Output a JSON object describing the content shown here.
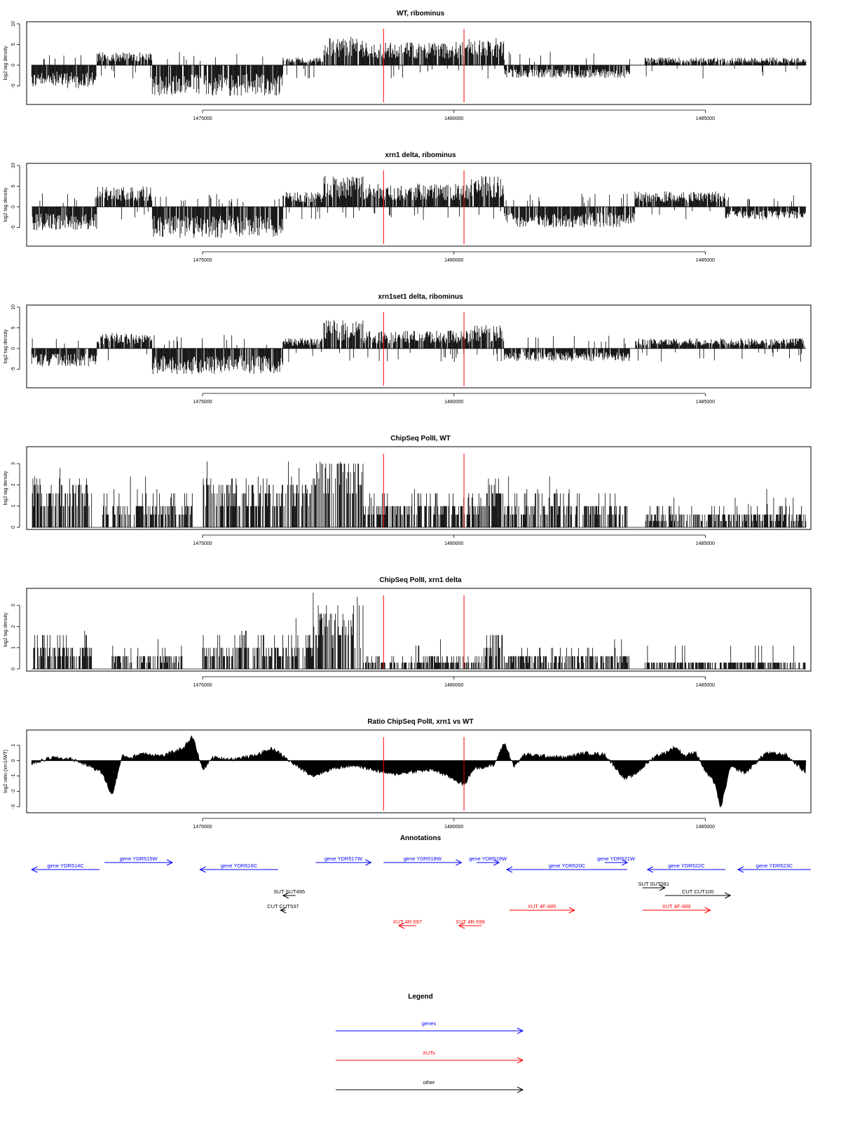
{
  "colors": {
    "marker": "#ff0000",
    "gene": "#0000ff",
    "xut": "#ff0000",
    "other": "#000000",
    "data": "#000000",
    "frame": "#000000"
  },
  "xaxis": {
    "range": [
      1471500,
      1487100
    ],
    "ticks": [
      1475000,
      1480000,
      1485000
    ],
    "tick_labels": [
      "1475000",
      "1480000",
      "1485000"
    ]
  },
  "markers": [
    1478600,
    1480200
  ],
  "panels": [
    {
      "title": "WT, ribominus",
      "ylabel": "log2 tag density",
      "ylim": [
        -9.5,
        10.5
      ],
      "yticks": [
        -5,
        0,
        5,
        10
      ],
      "ytick_labels": [
        "-5",
        "0",
        "5",
        "10"
      ]
    },
    {
      "title": "xrn1 delta, ribominus",
      "ylabel": "log2 tag density",
      "ylim": [
        -9.5,
        10.5
      ],
      "yticks": [
        -5,
        0,
        5,
        10
      ],
      "ytick_labels": [
        "-5",
        "0",
        "5",
        "10"
      ]
    },
    {
      "title": "xrn1set1 delta, ribominus",
      "ylabel": "log2 tag density",
      "ylim": [
        -9.5,
        10.5
      ],
      "yticks": [
        -5,
        0,
        5,
        10
      ],
      "ytick_labels": [
        "-5",
        "0",
        "5",
        "10"
      ]
    },
    {
      "title": "ChipSeq PolII, WT",
      "ylabel": "log2 tag density",
      "ylim": [
        -0.1,
        3.8
      ],
      "yticks": [
        0,
        1,
        2,
        3
      ],
      "ytick_labels": [
        "0",
        "1",
        "2",
        "3"
      ]
    },
    {
      "title": "ChipSeq PolII, xrn1 delta",
      "ylabel": "log2 tag density",
      "ylim": [
        -0.1,
        3.8
      ],
      "yticks": [
        0,
        1,
        2,
        3
      ],
      "ytick_labels": [
        "0",
        "1",
        "2",
        "3"
      ]
    },
    {
      "title": "Ratio ChipSeq PolII, xrn1 vs WT",
      "ylabel": "log2 ratio (xrn1/WT)",
      "ylim": [
        -3.4,
        2.0
      ],
      "yticks": [
        -3,
        -2,
        -1,
        0,
        1
      ],
      "ytick_labels": [
        "-3",
        "-2",
        "-1",
        "0",
        "1"
      ]
    }
  ],
  "chart_data": [
    {
      "type": "bar",
      "title": "WT, ribominus",
      "xlabel": "",
      "ylabel": "log2 tag density",
      "ylim": [
        -9.5,
        10.5
      ],
      "grid": false,
      "segments": [
        {
          "start": 1471600,
          "end": 1472900,
          "strand": "minus",
          "level": 4.5
        },
        {
          "start": 1472900,
          "end": 1474000,
          "strand": "plus",
          "level": 2.5
        },
        {
          "start": 1474000,
          "end": 1476600,
          "strand": "minus",
          "level": 6
        },
        {
          "start": 1476600,
          "end": 1477400,
          "strand": "plus",
          "level": 1.5
        },
        {
          "start": 1477400,
          "end": 1478200,
          "strand": "plus",
          "level": 5.5
        },
        {
          "start": 1478200,
          "end": 1480300,
          "strand": "plus",
          "level": 4.5
        },
        {
          "start": 1480300,
          "end": 1481000,
          "strand": "plus",
          "level": 5.5
        },
        {
          "start": 1481000,
          "end": 1483500,
          "strand": "minus",
          "level": 2.5
        },
        {
          "start": 1483800,
          "end": 1487000,
          "strand": "plus",
          "level": 1.5
        }
      ]
    },
    {
      "type": "bar",
      "title": "xrn1 delta, ribominus",
      "xlabel": "",
      "ylabel": "log2 tag density",
      "ylim": [
        -9.5,
        10.5
      ],
      "grid": false,
      "segments": [
        {
          "start": 1471600,
          "end": 1472900,
          "strand": "minus",
          "level": 4.5
        },
        {
          "start": 1472900,
          "end": 1474000,
          "strand": "plus",
          "level": 4
        },
        {
          "start": 1474000,
          "end": 1476600,
          "strand": "minus",
          "level": 6
        },
        {
          "start": 1476600,
          "end": 1477400,
          "strand": "plus",
          "level": 3
        },
        {
          "start": 1477400,
          "end": 1478200,
          "strand": "plus",
          "level": 6
        },
        {
          "start": 1478200,
          "end": 1480300,
          "strand": "plus",
          "level": 4.5
        },
        {
          "start": 1480300,
          "end": 1481000,
          "strand": "plus",
          "level": 6
        },
        {
          "start": 1481000,
          "end": 1483600,
          "strand": "minus",
          "level": 4
        },
        {
          "start": 1483600,
          "end": 1485400,
          "strand": "plus",
          "level": 3
        },
        {
          "start": 1485400,
          "end": 1487000,
          "strand": "minus",
          "level": 2.5
        }
      ]
    },
    {
      "type": "bar",
      "title": "xrn1set1 delta, ribominus",
      "xlabel": "",
      "ylabel": "log2 tag density",
      "ylim": [
        -9.5,
        10.5
      ],
      "grid": false,
      "segments": [
        {
          "start": 1471600,
          "end": 1472900,
          "strand": "minus",
          "level": 3.5
        },
        {
          "start": 1472900,
          "end": 1474000,
          "strand": "plus",
          "level": 3
        },
        {
          "start": 1474000,
          "end": 1476600,
          "strand": "minus",
          "level": 5
        },
        {
          "start": 1476600,
          "end": 1477400,
          "strand": "plus",
          "level": 2
        },
        {
          "start": 1477400,
          "end": 1478200,
          "strand": "plus",
          "level": 5.5
        },
        {
          "start": 1478200,
          "end": 1480300,
          "strand": "plus",
          "level": 3.5
        },
        {
          "start": 1480300,
          "end": 1481000,
          "strand": "plus",
          "level": 4.5
        },
        {
          "start": 1481000,
          "end": 1483500,
          "strand": "minus",
          "level": 2.5
        },
        {
          "start": 1483600,
          "end": 1487000,
          "strand": "plus",
          "level": 2
        }
      ]
    },
    {
      "type": "bar",
      "title": "ChipSeq PolII, WT",
      "xlabel": "",
      "ylabel": "log2 tag density",
      "ylim": [
        -0.1,
        3.8
      ],
      "grid": false,
      "segments": [
        {
          "start": 1471600,
          "end": 1472800,
          "level": 1.6
        },
        {
          "start": 1473000,
          "end": 1474800,
          "level": 1.0
        },
        {
          "start": 1475000,
          "end": 1477200,
          "level": 1.6
        },
        {
          "start": 1477200,
          "end": 1478200,
          "level": 2.6
        },
        {
          "start": 1478200,
          "end": 1480600,
          "level": 1.0
        },
        {
          "start": 1480600,
          "end": 1481000,
          "level": 1.6
        },
        {
          "start": 1481000,
          "end": 1483500,
          "level": 1.0
        },
        {
          "start": 1483800,
          "end": 1487000,
          "level": 0.6
        }
      ]
    },
    {
      "type": "bar",
      "title": "ChipSeq PolII, xrn1 delta",
      "xlabel": "",
      "ylabel": "log2 tag density",
      "ylim": [
        -0.1,
        3.8
      ],
      "grid": false,
      "segments": [
        {
          "start": 1471600,
          "end": 1472800,
          "level": 1.0
        },
        {
          "start": 1473200,
          "end": 1474600,
          "level": 0.6
        },
        {
          "start": 1475000,
          "end": 1477200,
          "level": 1.0
        },
        {
          "start": 1477200,
          "end": 1478200,
          "level": 2.2
        },
        {
          "start": 1478200,
          "end": 1480600,
          "level": 0.4
        },
        {
          "start": 1480600,
          "end": 1481000,
          "level": 1.2
        },
        {
          "start": 1481000,
          "end": 1483500,
          "level": 0.6
        },
        {
          "start": 1483800,
          "end": 1487000,
          "level": 0.3
        }
      ]
    },
    {
      "type": "area",
      "title": "Ratio ChipSeq PolII, xrn1 vs WT",
      "xlabel": "",
      "ylabel": "log2 ratio (xrn1/WT)",
      "ylim": [
        -3.4,
        2.0
      ],
      "grid": false,
      "x": [
        1471600,
        1472000,
        1472400,
        1472800,
        1473000,
        1473200,
        1473400,
        1473600,
        1473800,
        1474200,
        1474600,
        1474800,
        1475000,
        1475200,
        1475600,
        1476000,
        1476400,
        1476800,
        1477200,
        1477600,
        1478000,
        1478400,
        1478800,
        1479200,
        1479600,
        1480000,
        1480200,
        1480400,
        1480800,
        1481000,
        1481200,
        1481400,
        1481800,
        1482200,
        1482600,
        1483000,
        1483400,
        1483600,
        1484000,
        1484200,
        1484400,
        1484600,
        1484800,
        1485000,
        1485200,
        1485300,
        1485500,
        1485800,
        1486200,
        1486600,
        1487000
      ],
      "y": [
        -0.2,
        0.2,
        0.1,
        -0.4,
        -0.8,
        -2.3,
        0.3,
        0.2,
        0.5,
        0.3,
        0.8,
        1.6,
        -0.6,
        0.2,
        0.1,
        0.3,
        0.8,
        -0.2,
        -1.0,
        -0.5,
        -0.3,
        -0.6,
        -0.9,
        -0.7,
        -0.6,
        -1.2,
        -1.6,
        -0.5,
        -0.3,
        1.2,
        -0.4,
        0.4,
        0.3,
        0.2,
        0.5,
        0.4,
        -1.2,
        -0.9,
        0.3,
        0.5,
        0.9,
        0.3,
        0.6,
        -0.7,
        -1.5,
        -3.2,
        -0.4,
        -0.8,
        0.5,
        0.4,
        -0.8
      ]
    }
  ],
  "annotations": {
    "title": "Annotations",
    "features": [
      {
        "label": "gene YDR514C",
        "kind": "gene",
        "start": 1471600,
        "end": 1472950,
        "dir": "left",
        "row": 1
      },
      {
        "label": "gene YDR515W",
        "kind": "gene",
        "start": 1473050,
        "end": 1474400,
        "dir": "right",
        "row": 0
      },
      {
        "label": "gene YDR516C",
        "kind": "gene",
        "start": 1474950,
        "end": 1476500,
        "dir": "left",
        "row": 1
      },
      {
        "label": "gene YDR517W",
        "kind": "gene",
        "start": 1477250,
        "end": 1478350,
        "dir": "right",
        "row": 0
      },
      {
        "label": "gene YDR518W",
        "kind": "gene",
        "start": 1478600,
        "end": 1480150,
        "dir": "right",
        "row": 0
      },
      {
        "label": "gene YDR519W",
        "kind": "gene",
        "start": 1480450,
        "end": 1480900,
        "dir": "right",
        "row": 0
      },
      {
        "label": "gene YDR520C",
        "kind": "gene",
        "start": 1481050,
        "end": 1483450,
        "dir": "left",
        "row": 1
      },
      {
        "label": "gene YDR521W",
        "kind": "gene",
        "start": 1483000,
        "end": 1483450,
        "dir": "right",
        "row": 0
      },
      {
        "label": "gene YDR522C",
        "kind": "gene",
        "start": 1483850,
        "end": 1485400,
        "dir": "left",
        "row": 1
      },
      {
        "label": "gene YDR523C",
        "kind": "gene",
        "start": 1485650,
        "end": 1487100,
        "dir": "left",
        "row": 1
      },
      {
        "label": "SUT SUT495",
        "kind": "other",
        "start": 1476600,
        "end": 1476850,
        "dir": "left",
        "row": 3
      },
      {
        "label": "CUT CUT537",
        "kind": "other",
        "start": 1476550,
        "end": 1476650,
        "dir": "left",
        "row": 4
      },
      {
        "label": "SUT SUT081",
        "kind": "other",
        "start": 1483750,
        "end": 1484200,
        "dir": "right",
        "row": 2
      },
      {
        "label": "CUT CUT100",
        "kind": "other",
        "start": 1484200,
        "end": 1485500,
        "dir": "right",
        "row": 3
      },
      {
        "label": "XUT 4R-597",
        "kind": "xut",
        "start": 1478900,
        "end": 1479250,
        "dir": "left",
        "row": 5
      },
      {
        "label": "XUT 4R-599",
        "kind": "xut",
        "start": 1480100,
        "end": 1480550,
        "dir": "left",
        "row": 5
      },
      {
        "label": "XUT 4F-685",
        "kind": "xut",
        "start": 1481100,
        "end": 1482400,
        "dir": "right",
        "row": 4
      },
      {
        "label": "XUT 4F-689",
        "kind": "xut",
        "start": 1483750,
        "end": 1485100,
        "dir": "right",
        "row": 4
      }
    ]
  },
  "legend": {
    "title": "Legend",
    "items": [
      {
        "label": "genes",
        "kind": "gene"
      },
      {
        "label": "XUTs",
        "kind": "xut"
      },
      {
        "label": "other",
        "kind": "other"
      }
    ]
  }
}
